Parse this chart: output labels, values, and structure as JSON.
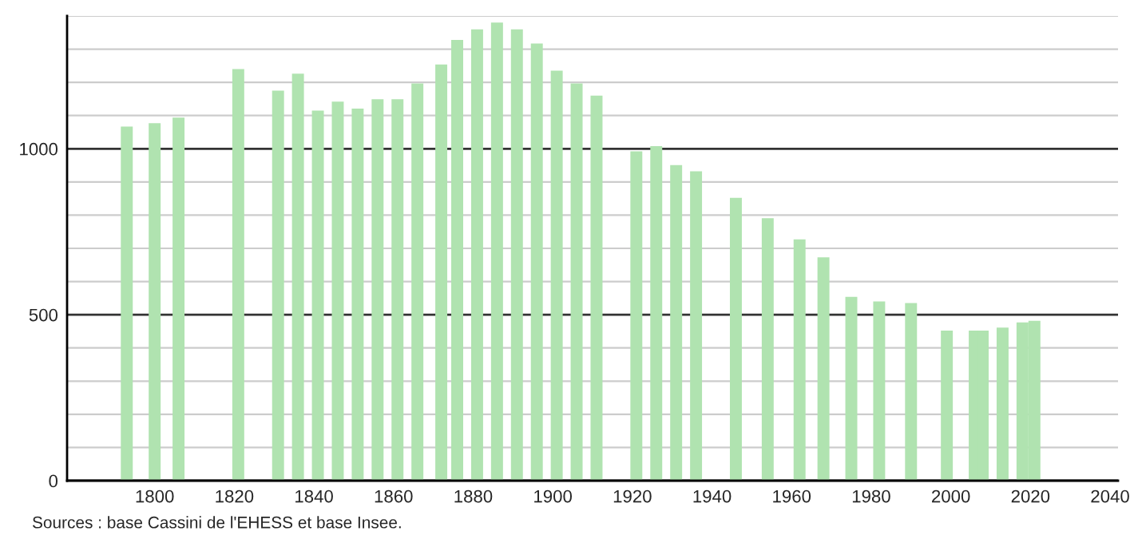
{
  "chart_data": {
    "type": "bar",
    "x": [
      1793,
      1800,
      1806,
      1821,
      1831,
      1836,
      1841,
      1846,
      1851,
      1856,
      1861,
      1866,
      1872,
      1876,
      1881,
      1886,
      1891,
      1896,
      1901,
      1906,
      1911,
      1921,
      1926,
      1931,
      1936,
      1946,
      1954,
      1962,
      1968,
      1975,
      1982,
      1990,
      1999,
      2006,
      2008,
      2013,
      2018,
      2021
    ],
    "series": [
      {
        "color": "#b0e3b0",
        "values": [
          1067,
          1077,
          1094,
          1240,
          1175,
          1226,
          1115,
          1142,
          1121,
          1149,
          1149,
          1197,
          1254,
          1328,
          1360,
          1380,
          1360,
          1317,
          1235,
          1197,
          1160,
          992,
          1008,
          951,
          932,
          852,
          791,
          727,
          673,
          554,
          540,
          535,
          452,
          452,
          452,
          461,
          477,
          482
        ]
      }
    ],
    "xlim": [
      1778,
      2042
    ],
    "xticks": [
      1800,
      1820,
      1840,
      1860,
      1880,
      1900,
      1920,
      1940,
      1960,
      1980,
      2000,
      2020,
      2040
    ],
    "ylim": [
      0,
      1400
    ],
    "yticks": [
      0,
      {
        "value": 100,
        "label": null
      },
      {
        "value": 200,
        "label": null
      },
      {
        "value": 300,
        "label": null
      },
      {
        "value": 400,
        "label": null
      },
      500,
      {
        "value": 600,
        "label": null
      },
      {
        "value": 700,
        "label": null
      },
      {
        "value": 800,
        "label": null
      },
      {
        "value": 900,
        "label": null
      },
      1000,
      {
        "value": 1100,
        "label": null
      },
      {
        "value": 1200,
        "label": null
      },
      {
        "value": 1300,
        "label": null
      },
      {
        "value": 1400,
        "label": null
      }
    ],
    "grid": "y",
    "annotations": [
      "Sources : base Cassini de l'EHESS et base Insee."
    ]
  }
}
